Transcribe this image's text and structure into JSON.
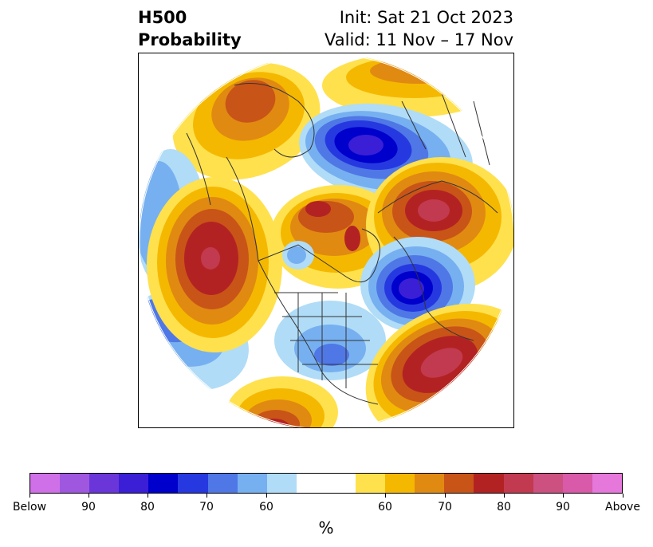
{
  "header": {
    "title_line1": "H500",
    "title_line2": "Probability",
    "init_text": "Init: Sat 21 Oct 2023",
    "valid_text": "Valid: 11 Nov – 17 Nov"
  },
  "colorbar": {
    "colors": [
      "#d070e8",
      "#a057e0",
      "#6a36d9",
      "#3a1fd6",
      "#0000cc",
      "#2639e0",
      "#4f77e6",
      "#77b0f0",
      "#b0dcf7",
      "#ffffff",
      "#ffffff",
      "#ffe14d",
      "#f5b800",
      "#e08a12",
      "#c95417",
      "#b32223",
      "#c23a4f",
      "#cc5080",
      "#d85aa8",
      "#e678dc"
    ],
    "labels": [
      "Below",
      "90",
      "80",
      "70",
      "60",
      "60",
      "70",
      "80",
      "90",
      "Above"
    ],
    "unit": "%"
  },
  "map": {
    "projection": "north-polar-stereographic",
    "variable": "H500 probability"
  }
}
